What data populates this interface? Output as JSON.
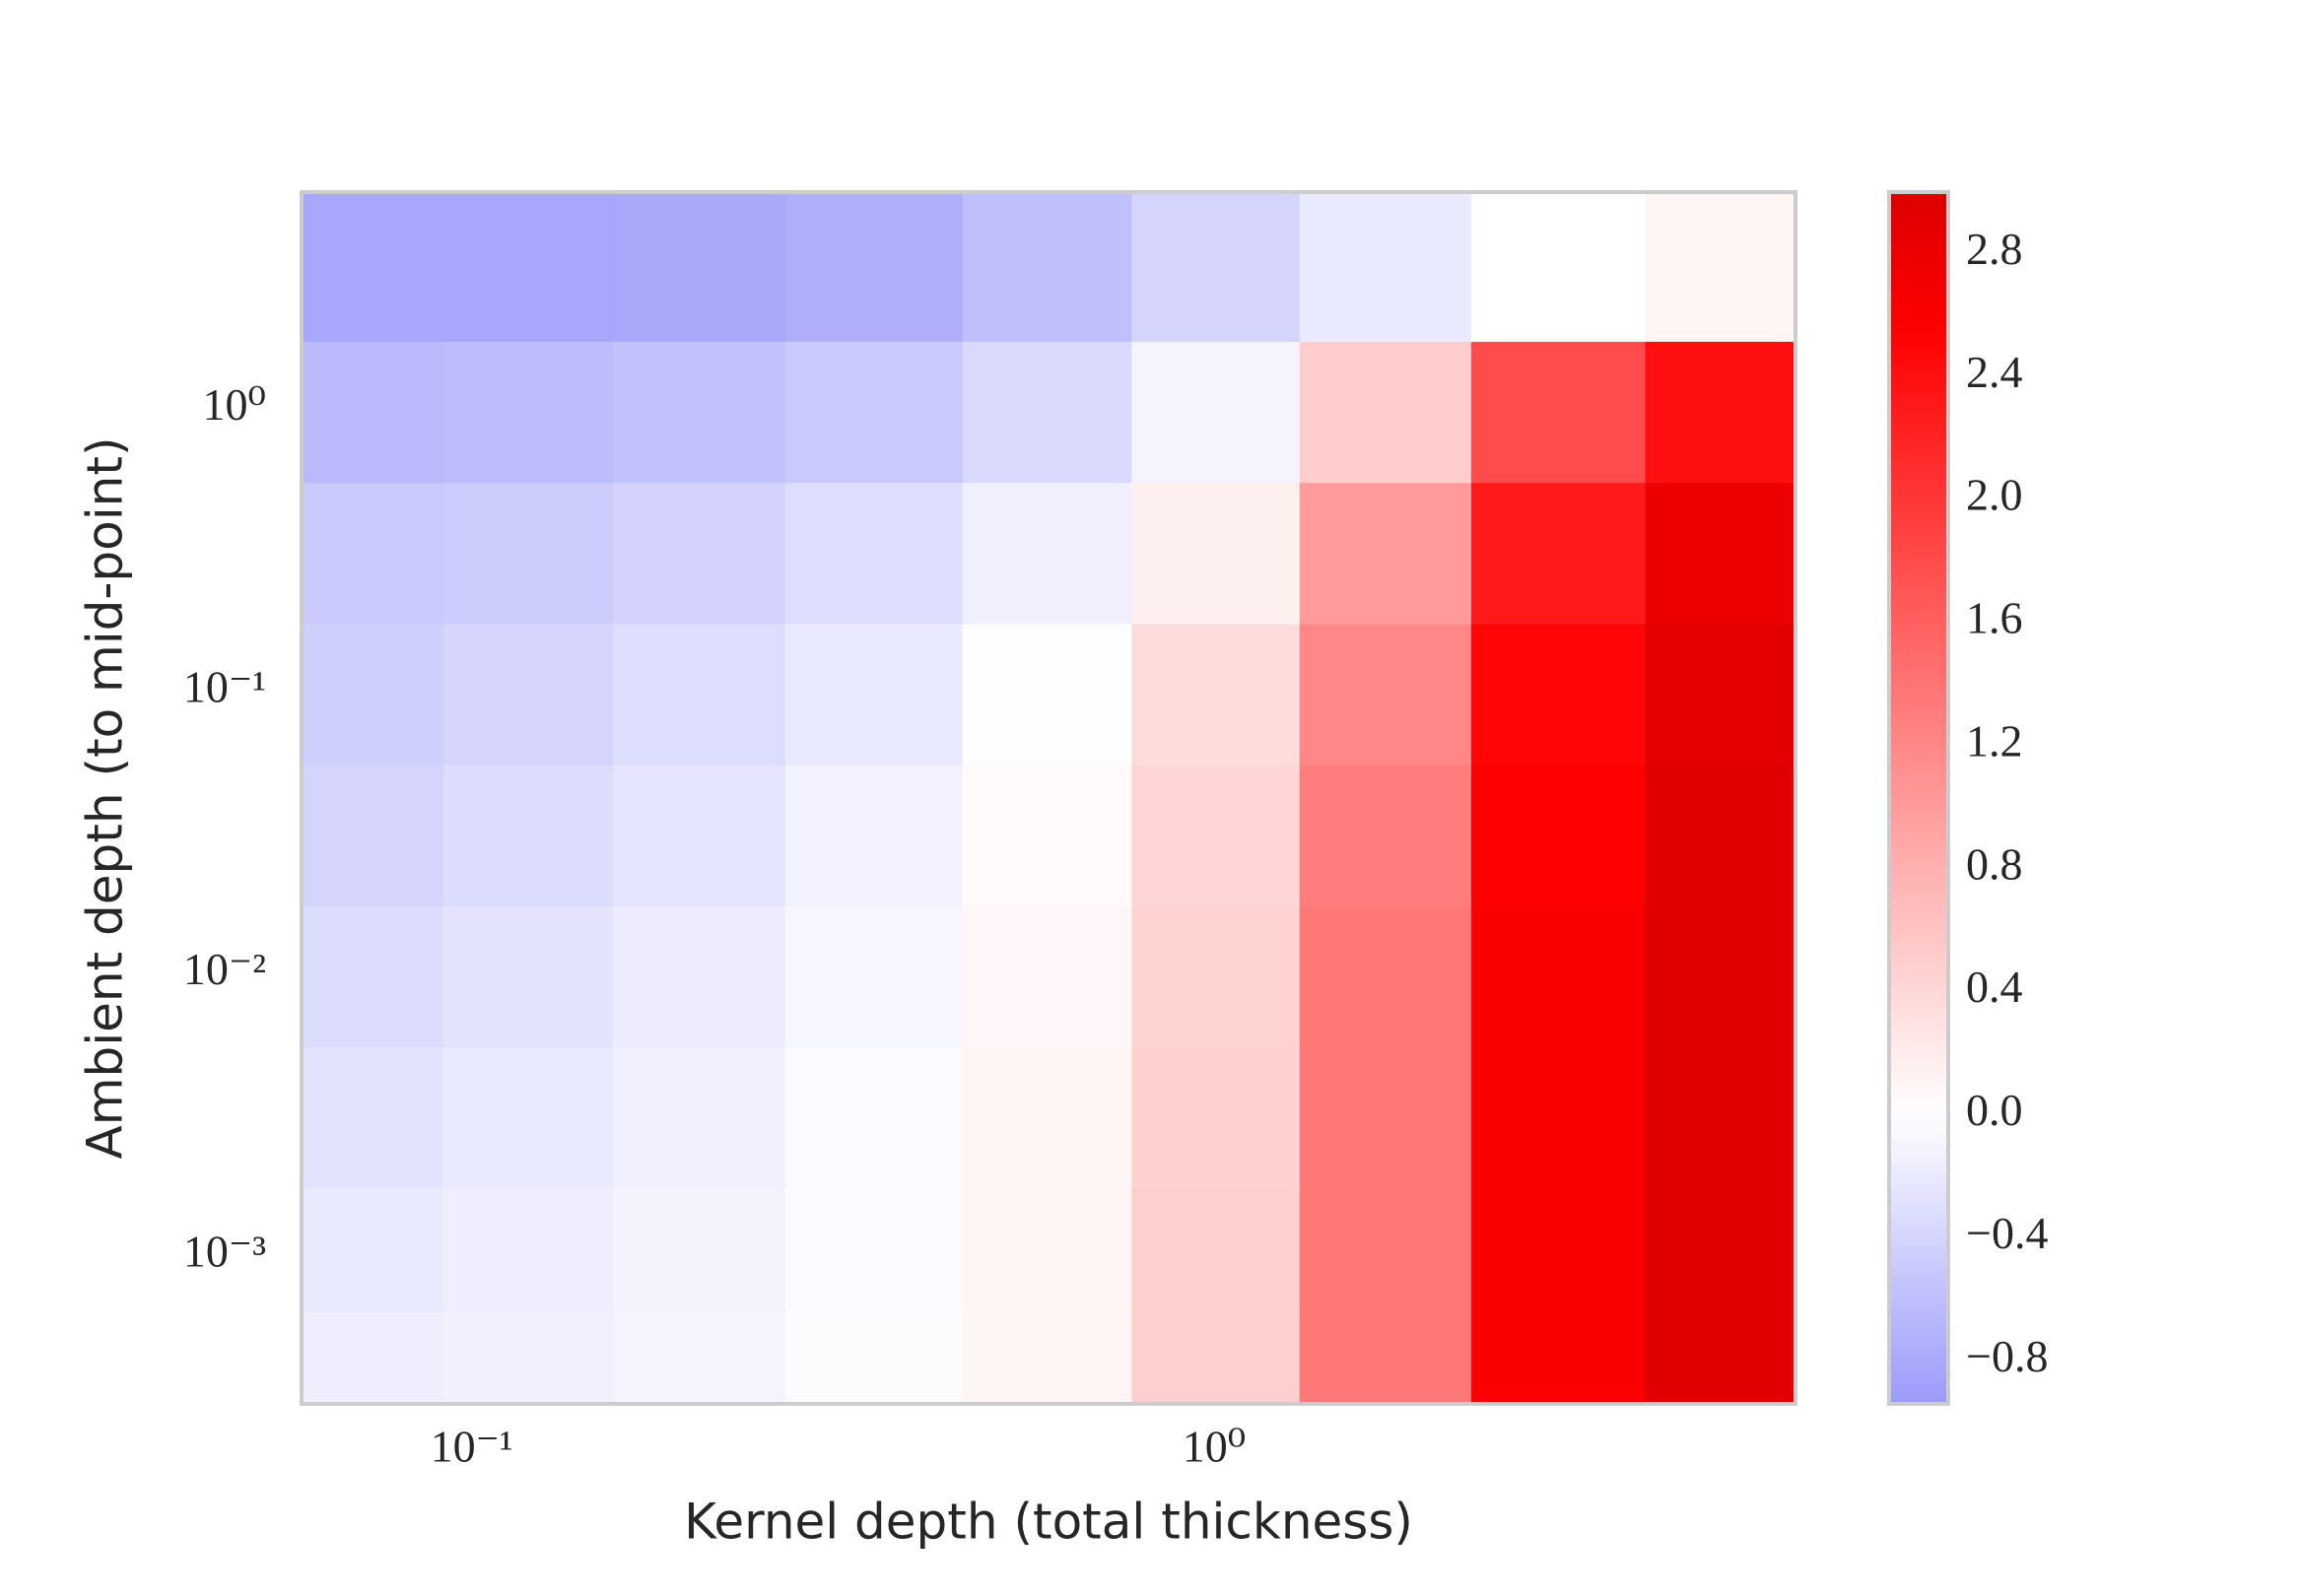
{
  "chart_data": {
    "type": "heatmap",
    "x_label": "Kernel depth (total thickness)",
    "y_label": "Ambient depth (to mid-point)",
    "x": [
      0.07,
      0.12,
      0.2,
      0.35,
      0.6,
      1,
      1.7,
      2.9,
      5
    ],
    "y": [
      3,
      1,
      0.3,
      0.1,
      0.03,
      0.01,
      0.003,
      0.001,
      0.0004
    ],
    "z": [
      [
        -0.82,
        -0.82,
        -0.8,
        -0.75,
        -0.6,
        -0.4,
        -0.2,
        0,
        0.1
      ],
      [
        -0.65,
        -0.62,
        -0.58,
        -0.5,
        -0.35,
        -0.1,
        0.5,
        1.8,
        2.4
      ],
      [
        -0.5,
        -0.48,
        -0.42,
        -0.32,
        -0.15,
        0.15,
        1.0,
        2.3,
        2.8
      ],
      [
        -0.45,
        -0.4,
        -0.32,
        -0.2,
        -0.02,
        0.35,
        1.2,
        2.5,
        2.9
      ],
      [
        -0.4,
        -0.33,
        -0.25,
        -0.12,
        0.05,
        0.42,
        1.3,
        2.55,
        2.95
      ],
      [
        -0.33,
        -0.26,
        -0.18,
        -0.08,
        0.08,
        0.45,
        1.35,
        2.6,
        2.95
      ],
      [
        -0.26,
        -0.2,
        -0.14,
        -0.05,
        0.1,
        0.47,
        1.35,
        2.6,
        2.95
      ],
      [
        -0.2,
        -0.16,
        -0.11,
        -0.04,
        0.1,
        0.48,
        1.35,
        2.6,
        2.95
      ],
      [
        -0.16,
        -0.13,
        -0.1,
        -0.03,
        0.1,
        0.48,
        1.35,
        2.6,
        2.95
      ]
    ],
    "x_log": true,
    "y_log": true,
    "xlim": [
      0.059,
      6.07
    ],
    "ylim": [
      0.0003,
      5.87
    ],
    "xticks": [
      {
        "value": 0.1,
        "label": "10⁻¹"
      },
      {
        "value": 1,
        "label": "10⁰"
      }
    ],
    "yticks": [
      {
        "value": 0.001,
        "label": "10⁻³"
      },
      {
        "value": 0.01,
        "label": "10⁻²"
      },
      {
        "value": 0.1,
        "label": "10⁻¹"
      },
      {
        "value": 1,
        "label": "10⁰"
      }
    ],
    "clim": [
      -0.94,
      3.0
    ],
    "cticks": [
      {
        "value": -0.8,
        "label": "−0.8"
      },
      {
        "value": -0.4,
        "label": "−0.4"
      },
      {
        "value": 0,
        "label": "0.0"
      },
      0.4,
      0.8,
      1.2,
      1.6,
      {
        "value": 2.0,
        "label": "2.0"
      },
      2.4,
      2.8
    ],
    "colors": {
      "low": "#9a9afa",
      "mid": "#ffffff",
      "high": "#ff0000",
      "max": "#dd0000"
    }
  }
}
